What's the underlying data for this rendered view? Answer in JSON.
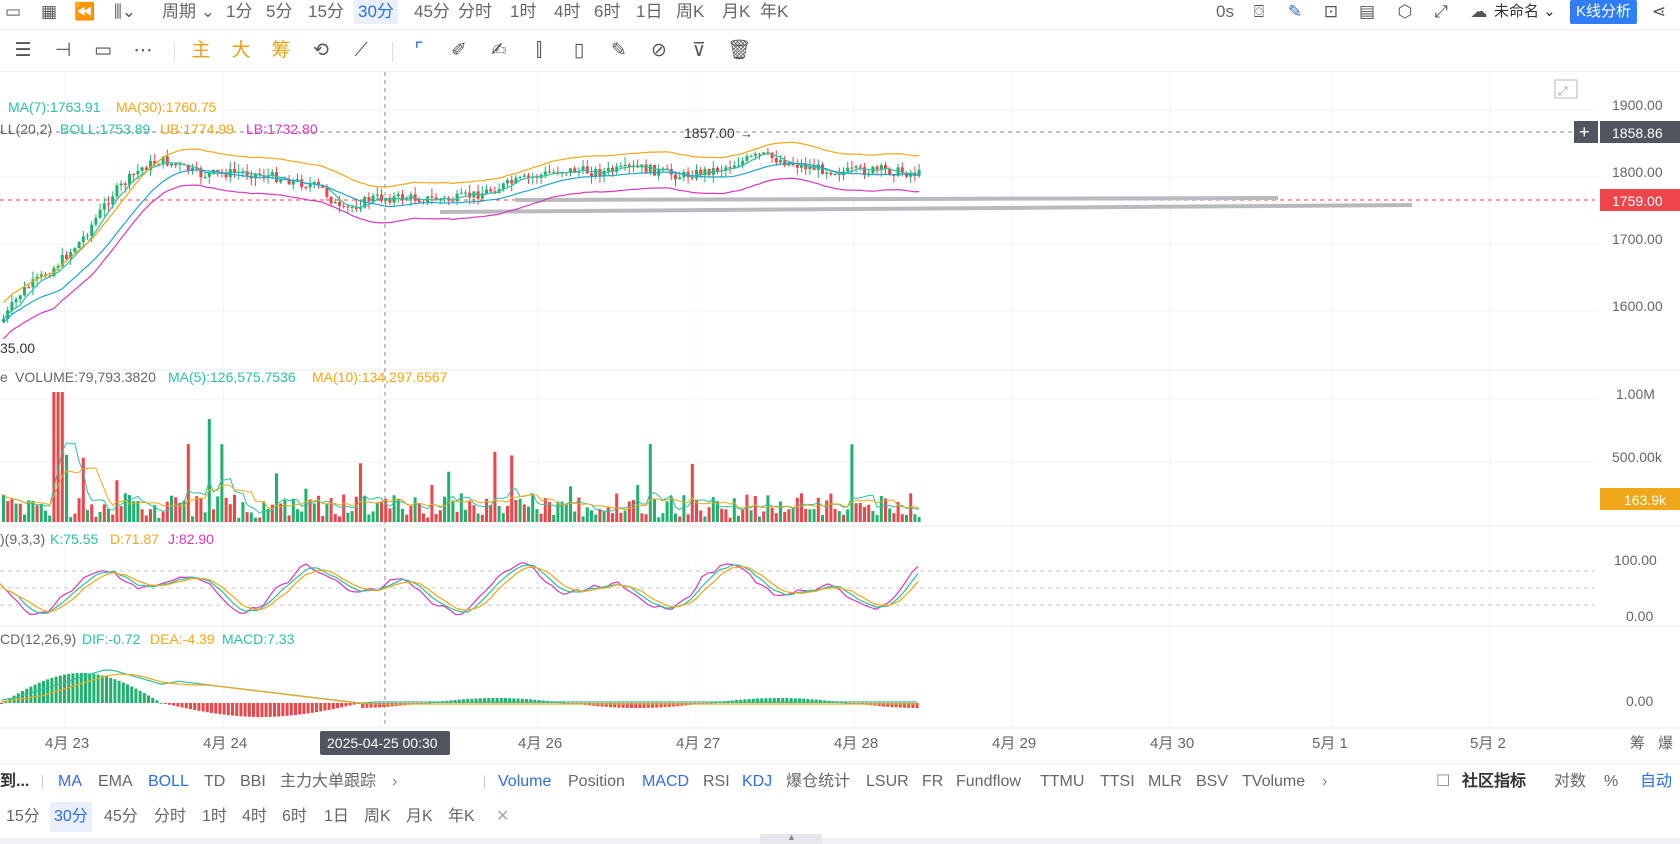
{
  "toolbar": {
    "period_label": "周期",
    "periods": [
      "1分",
      "5分",
      "15分",
      "30分",
      "45分",
      "分时",
      "1时",
      "4时",
      "6时",
      "1日",
      "周K",
      "月K",
      "年K"
    ],
    "active_period": "30分",
    "countdown": "0s",
    "layout_name": "未命名",
    "analysis_button": "K线分析"
  },
  "drawing_toolbar": {
    "main_label": "主",
    "big_label": "大",
    "chip_label": "筹"
  },
  "main_chart": {
    "ma_legend": {
      "ma7": "MA(7):1763.91",
      "ma30": "MA(30):1760.75"
    },
    "boll_legend": {
      "name": "LL(20,2)",
      "boll": "BOLL:1753.89",
      "ub": "UB:1774.99",
      "lb": "LB:1732.80"
    },
    "high_label": "1857.00",
    "low_label": "35.00",
    "price_ticks": [
      "1900.00",
      "1800.00",
      "1700.00",
      "1600.00"
    ],
    "crosshair_price": "1858.86",
    "last_price": "1759.00",
    "colors": {
      "up": "#20b26c",
      "down": "#ef454a",
      "ma7": "#2ebfa3",
      "ma30": "#f0a81a",
      "boll_upper": "#f0a81a",
      "boll_lower": "#d63aba"
    }
  },
  "volume_panel": {
    "legend": {
      "prefix": "e",
      "volume": "VOLUME:79,793.3820",
      "ma5": "MA(5):126,575.7536",
      "ma10": "MA(10):134,297.6567"
    },
    "ticks": [
      "1.00M",
      "500.00k"
    ],
    "last_value": "163.9k"
  },
  "kdj_panel": {
    "legend": {
      "name": ")(9,3,3)",
      "k": "K:75.55",
      "d": "D:71.87",
      "j": "J:82.90"
    },
    "ticks": [
      "100.00",
      "0.00"
    ]
  },
  "macd_panel": {
    "legend": {
      "name": "CD(12,26,9)",
      "dif": "DIF:-0.72",
      "dea": "DEA:-4.39",
      "macd": "MACD:7.33"
    },
    "ticks": [
      "0.00"
    ]
  },
  "time_axis": {
    "labels": [
      "4月 23",
      "4月 24",
      "4月 26",
      "4月 27",
      "4月 28",
      "4月 29",
      "4月 30",
      "5月 1",
      "5月 2"
    ],
    "crosshair_time": "2025-04-25 00:30",
    "right_labels": [
      "筹",
      "爆"
    ]
  },
  "indicator_bar": {
    "cut_label": "到...",
    "main_indicators": [
      "MA",
      "EMA",
      "BOLL",
      "TD",
      "BBI",
      "主力大单跟踪"
    ],
    "sub_indicators": [
      "Volume",
      "Position",
      "MACD",
      "RSI",
      "KDJ",
      "爆仓统计",
      "LSUR",
      "FR",
      "Fundflow",
      "TTMU",
      "TTSI",
      "MLR",
      "BSV",
      "TVolume"
    ],
    "community_label": "社区指标",
    "log_label": "对数",
    "percent_label": "%",
    "auto_label": "自动"
  },
  "period_bar": {
    "items": [
      "15分",
      "30分",
      "45分",
      "分时",
      "1时",
      "4时",
      "6时",
      "1日",
      "周K",
      "月K",
      "年K"
    ],
    "active": "30分"
  }
}
